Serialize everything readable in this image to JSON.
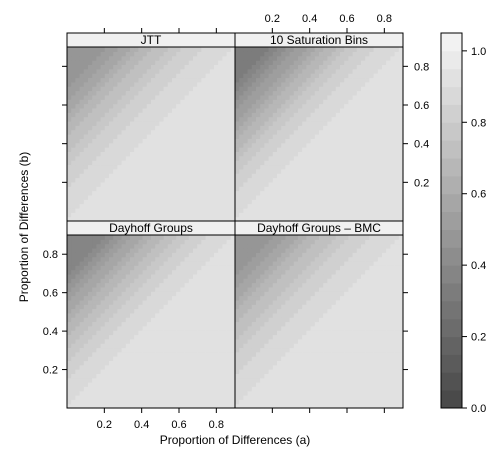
{
  "chart_data": {
    "type": "heatmap",
    "xlabel": "Proportion of Differences (a)",
    "ylabel": "Proportion of Differences (b)",
    "xlim": [
      0,
      0.9
    ],
    "ylim": [
      0,
      0.9
    ],
    "x_ticks": [
      0.2,
      0.4,
      0.6,
      0.8
    ],
    "y_ticks": [
      0.2,
      0.4,
      0.6,
      0.8
    ],
    "x_tick_labels": [
      "0.2",
      "0.4",
      "0.6",
      "0.8"
    ],
    "y_tick_labels": [
      "0.2",
      "0.4",
      "0.6",
      "0.8"
    ],
    "colorbar": {
      "range": [
        0,
        1.05
      ],
      "ticks": [
        0.0,
        0.2,
        0.4,
        0.6,
        0.8,
        1.0
      ],
      "tick_labels": [
        "0.0",
        "0.2",
        "0.4",
        "0.6",
        "0.8",
        "1.0"
      ],
      "low_color": "#4a4a4a",
      "high_color": "#f2f2f2",
      "levels": 21
    },
    "panels": [
      {
        "title": "JTT",
        "min_value": 0.45,
        "plateau": 0.92
      },
      {
        "title": "10 Saturation Bins",
        "min_value": 0.3,
        "plateau": 0.92
      },
      {
        "title": "Dayhoff Groups",
        "min_value": 0.35,
        "plateau": 0.92
      },
      {
        "title": "Dayhoff Groups – BMC",
        "min_value": 0.45,
        "plateau": 0.92
      }
    ]
  }
}
